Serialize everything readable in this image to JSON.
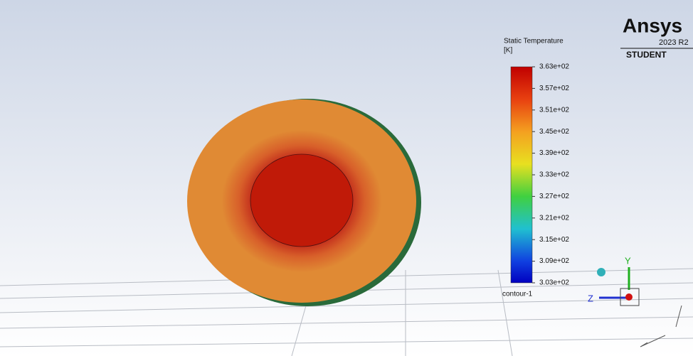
{
  "branding": {
    "name": "Ansys",
    "version": "2023 R2",
    "edition": "STUDENT"
  },
  "legend": {
    "title": "Static Temperature",
    "unit": "[K]",
    "labels": [
      "3.63e+02",
      "3.57e+02",
      "3.51e+02",
      "3.45e+02",
      "3.39e+02",
      "3.33e+02",
      "3.27e+02",
      "3.21e+02",
      "3.15e+02",
      "3.09e+02",
      "3.03e+02"
    ],
    "contour_name": "contour-1"
  },
  "axes_triad": {
    "y": "Y",
    "z": "Z"
  }
}
